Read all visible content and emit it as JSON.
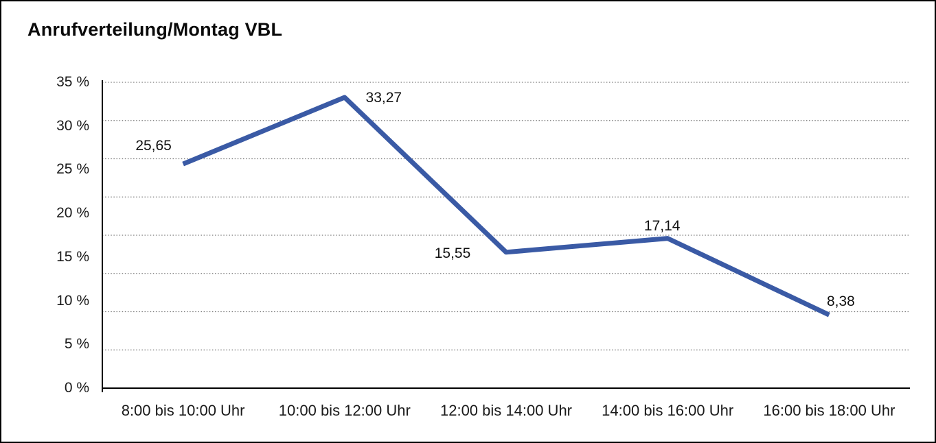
{
  "window": {
    "background": "#ffffff",
    "border_color": "#000000"
  },
  "chart_data": {
    "type": "line",
    "title": "Anrufverteilung/Montag VBL",
    "categories": [
      "8:00 bis 10:00 Uhr",
      "10:00 bis 12:00 Uhr",
      "12:00 bis 14:00 Uhr",
      "14:00 bis 16:00 Uhr",
      "16:00 bis 18:00 Uhr"
    ],
    "series": [
      {
        "values": [
          25.65,
          33.27,
          15.55,
          17.14,
          8.38
        ],
        "point_labels": [
          "25,65",
          "33,27",
          "15,55",
          "17,14",
          "8,38"
        ],
        "color": "#3A5AA5"
      }
    ],
    "ylim": [
      0,
      35
    ],
    "ytick_labels": [
      "35 %",
      "30 %",
      "25 %",
      "20 %",
      "15 %",
      "10 %",
      "5 %",
      "0 %"
    ],
    "grid": "horizontal-dotted",
    "grid_color": "#777777",
    "axis_color": "#000000",
    "legend": "none",
    "xlabel": "",
    "ylabel": ""
  }
}
